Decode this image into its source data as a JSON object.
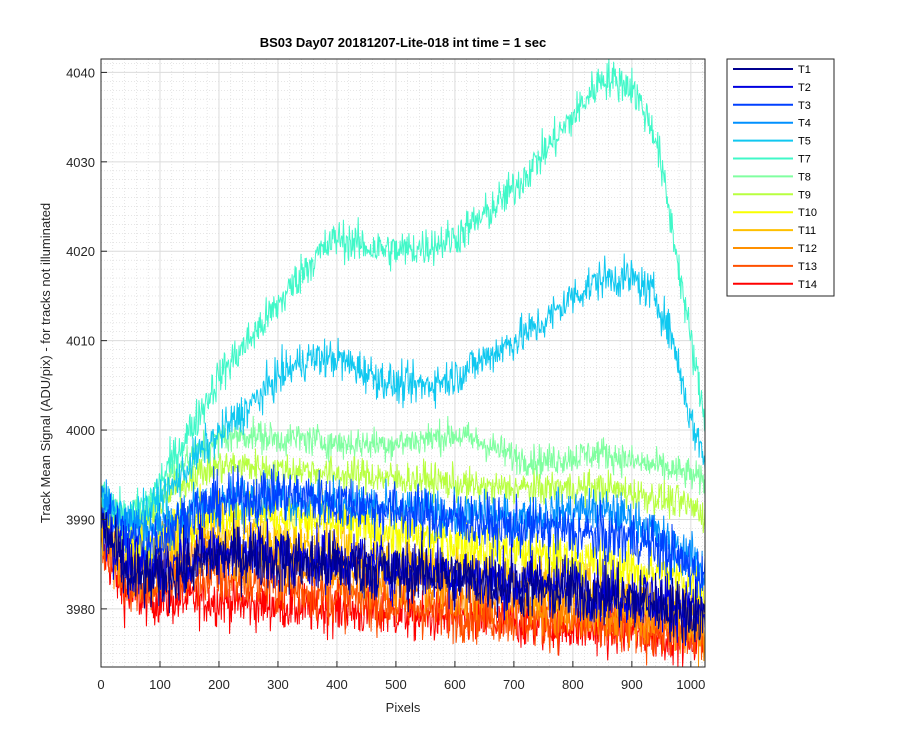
{
  "chart_data": {
    "type": "line",
    "title": "BS03 Day07 20181207-Lite-018 int time = 1 sec",
    "xlabel": "Pixels",
    "ylabel": "Track Mean Signal (ADU/pix) - for tracks not illuminated",
    "xlim": [
      0,
      1024
    ],
    "ylim": [
      3973.5,
      4041.5
    ],
    "xticks": [
      0,
      100,
      200,
      300,
      400,
      500,
      600,
      700,
      800,
      900,
      1000
    ],
    "yticks": [
      3980,
      3990,
      4000,
      4010,
      4020,
      4030,
      4040
    ],
    "grid": "major-and-minor",
    "legend_position": "outside-top-right",
    "x_sample_points": [
      0,
      40,
      80,
      120,
      160,
      200,
      250,
      300,
      350,
      400,
      450,
      500,
      550,
      600,
      650,
      700,
      750,
      800,
      850,
      900,
      940,
      970,
      1000,
      1024
    ],
    "series": [
      {
        "name": "T1",
        "color": "#00008f",
        "noise": 2.5,
        "values": [
          3990,
          3984,
          3983,
          3984,
          3985,
          3986,
          3986,
          3985.5,
          3985,
          3985,
          3984.5,
          3984,
          3984,
          3983.5,
          3983,
          3982.5,
          3982,
          3982,
          3981.5,
          3981,
          3980.5,
          3980,
          3979.5,
          3979
        ]
      },
      {
        "name": "T2",
        "color": "#0000e0",
        "noise": 2.5,
        "values": [
          3990,
          3985,
          3984,
          3985,
          3986,
          3986.5,
          3986.5,
          3986,
          3985.5,
          3985.5,
          3985,
          3984.5,
          3984.5,
          3984,
          3983.5,
          3983,
          3983,
          3982.5,
          3982,
          3981.5,
          3981,
          3980.5,
          3980,
          3979.5
        ]
      },
      {
        "name": "T3",
        "color": "#0040ff",
        "noise": 2.2,
        "values": [
          3991,
          3988,
          3987,
          3989,
          3991,
          3992,
          3992.5,
          3993,
          3992.5,
          3992,
          3991.5,
          3991,
          3990.5,
          3990,
          3989.5,
          3989,
          3989,
          3988.5,
          3988,
          3988,
          3987,
          3986,
          3984.5,
          3983.5
        ]
      },
      {
        "name": "T4",
        "color": "#0090ff",
        "noise": 1.8,
        "values": [
          3993,
          3990,
          3989,
          3990,
          3991.5,
          3992,
          3992.5,
          3992.5,
          3992,
          3992,
          3991.5,
          3991,
          3991,
          3990.5,
          3990.5,
          3990,
          3990.5,
          3991,
          3991,
          3990,
          3988.5,
          3987,
          3986,
          3984
        ]
      },
      {
        "name": "T5",
        "color": "#10c8f0",
        "noise": 1.6,
        "values": [
          3993,
          3990,
          3991,
          3993.5,
          3997,
          3999.5,
          4002.5,
          4006,
          4008,
          4008,
          4006.5,
          4005,
          4005,
          4006,
          4008,
          4010,
          4012,
          4015,
          4017,
          4017,
          4015,
          4010,
          4001,
          3997
        ]
      },
      {
        "name": "T7",
        "color": "#40f8c8",
        "noise": 1.6,
        "values": [
          3993,
          3990,
          3992,
          3996.5,
          4001,
          4006,
          4010,
          4014,
          4018.5,
          4021.5,
          4020.5,
          4020,
          4020.5,
          4021.5,
          4024,
          4027,
          4031,
          4035,
          4039.5,
          4038.5,
          4033,
          4022,
          4010,
          4001
        ]
      },
      {
        "name": "T8",
        "color": "#80ffa0",
        "noise": 1.3,
        "values": [
          3993,
          3990,
          3991,
          3995,
          3997.5,
          3999,
          3999.5,
          3999,
          3999,
          3998.5,
          3998.5,
          3998.5,
          3999,
          3999.5,
          3998.5,
          3997,
          3996.5,
          3997,
          3997.5,
          3996.5,
          3996,
          3995.5,
          3995,
          3994
        ]
      },
      {
        "name": "T9",
        "color": "#b8ff40",
        "noise": 1.4,
        "values": [
          3992,
          3989,
          3990,
          3993,
          3995,
          3996,
          3996,
          3995.5,
          3995.5,
          3995,
          3995,
          3994.5,
          3994.5,
          3994,
          3993.5,
          3993.5,
          3993.5,
          3993.5,
          3993.5,
          3993,
          3992.5,
          3992,
          3991.5,
          3990.5
        ]
      },
      {
        "name": "T10",
        "color": "#f8ff00",
        "noise": 2.0,
        "values": [
          3991,
          3987,
          3987,
          3989,
          3990.5,
          3991,
          3991,
          3990.5,
          3990,
          3989.5,
          3989,
          3988.5,
          3988,
          3987.5,
          3987,
          3986.5,
          3986,
          3985.5,
          3985,
          3984.5,
          3984,
          3983.5,
          3983,
          3982
        ]
      },
      {
        "name": "T11",
        "color": "#ffc000",
        "noise": 2.3,
        "values": [
          3990,
          3986,
          3985.5,
          3987,
          3988,
          3988.5,
          3988,
          3987.5,
          3987,
          3986.5,
          3986,
          3985.5,
          3985,
          3984.5,
          3984,
          3983.5,
          3983,
          3982.5,
          3982,
          3981.5,
          3981,
          3980.5,
          3980,
          3979.5
        ]
      },
      {
        "name": "T12",
        "color": "#ff9000",
        "noise": 2.3,
        "values": [
          3989,
          3984.5,
          3984,
          3985,
          3986,
          3986,
          3985.5,
          3985,
          3984.5,
          3984,
          3983.5,
          3983,
          3982.5,
          3982,
          3981.5,
          3981,
          3980.5,
          3980,
          3979.5,
          3979,
          3978.5,
          3978.5,
          3978,
          3977.5
        ]
      },
      {
        "name": "T13",
        "color": "#ff5000",
        "noise": 2.3,
        "values": [
          3988,
          3983,
          3982.5,
          3983,
          3983.5,
          3983.5,
          3983,
          3982.5,
          3982,
          3981.5,
          3981,
          3980.5,
          3980,
          3979.5,
          3979.5,
          3979,
          3979,
          3978.5,
          3978,
          3978,
          3977.5,
          3977.5,
          3977,
          3976.5
        ]
      },
      {
        "name": "T14",
        "color": "#ff0000",
        "noise": 2.0,
        "values": [
          3987,
          3981.5,
          3981,
          3981,
          3981,
          3981,
          3980.5,
          3980.5,
          3980,
          3980,
          3979.5,
          3979.5,
          3979,
          3979,
          3978.5,
          3978.5,
          3978,
          3978,
          3977.5,
          3977.5,
          3977,
          3977,
          3976.5,
          3976.5
        ]
      }
    ]
  }
}
